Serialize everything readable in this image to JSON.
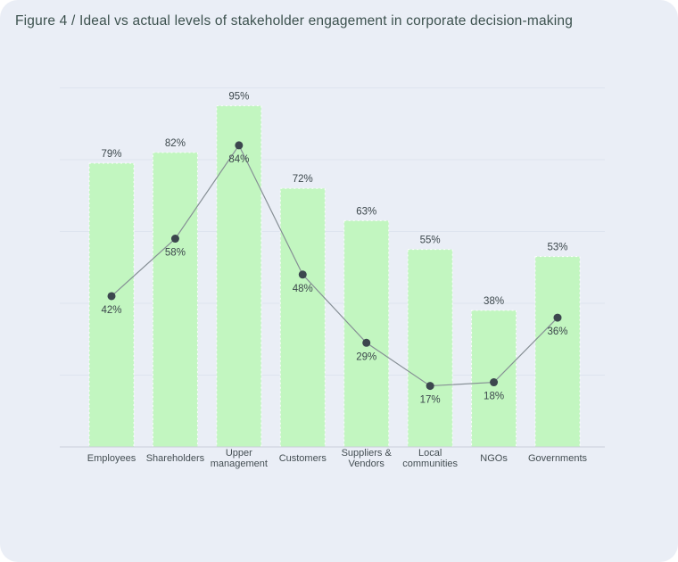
{
  "figure": {
    "title": "Figure 4 / Ideal vs actual levels of stakeholder engagement in corporate decision-making"
  },
  "chart_data": {
    "type": "bar",
    "title": "Ideal vs actual levels of stakeholder engagement in corporate decision-making",
    "categories": [
      "Employees",
      "Shareholders",
      "Upper\nmanagement",
      "Customers",
      "Suppliers &\nVendors",
      "Local\ncommunities",
      "NGOs",
      "Governments"
    ],
    "series": [
      {
        "name": "Ideal",
        "render": "bar",
        "values": [
          79,
          82,
          95,
          72,
          63,
          55,
          38,
          53
        ]
      },
      {
        "name": "Actual",
        "render": "line",
        "values": [
          42,
          58,
          84,
          48,
          29,
          17,
          18,
          36
        ]
      }
    ],
    "value_suffix": "%",
    "xlabel": "",
    "ylabel": "",
    "ylim": [
      0,
      100
    ],
    "grid": true,
    "gridline_step": 20,
    "legend": "none"
  },
  "colors": {
    "card_background": "#eaeef6",
    "bar_fill": "#c2f6c0",
    "bar_stroke_dashed": "#ffffff",
    "line_stroke": "#868f95",
    "point_fill": "#3c474e",
    "value_label": "#3c474c",
    "category_label": "#434d52",
    "gridline": "#dee4ef",
    "axis_line": "#c9cfd9",
    "title_text": "#3d524f"
  }
}
